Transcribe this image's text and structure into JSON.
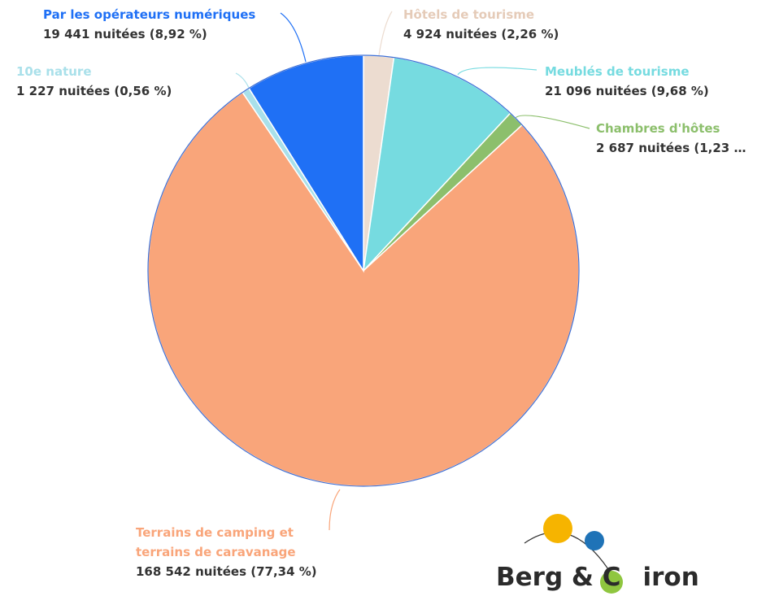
{
  "chart_data": {
    "type": "pie",
    "categories": [
      "Hôtels de tourisme",
      "Meublés de tourisme",
      "Chambres d'hôtes",
      "Terrains de camping et terrains de caravanage",
      "10e nature",
      "Par les opérateurs numériques"
    ],
    "values": [
      4924,
      21096,
      2687,
      168542,
      1227,
      19441
    ],
    "value_labels": [
      "4 924 nuitées (2,26 %)",
      "21 096 nuitées (9,68 %)",
      "2 687 nuitées (1,23 …",
      "168 542 nuitées (77,34 %)",
      "1 227 nuitées (0,56 %)",
      "19 441 nuitées (8,92 %)"
    ],
    "colors": [
      "#ecdcd0",
      "#76dbe0",
      "#8cbf6c",
      "#f9a57a",
      "#a9e0ea",
      "#1f70f5"
    ]
  },
  "logo": {
    "left": "Berg & C",
    "right": "iron"
  }
}
